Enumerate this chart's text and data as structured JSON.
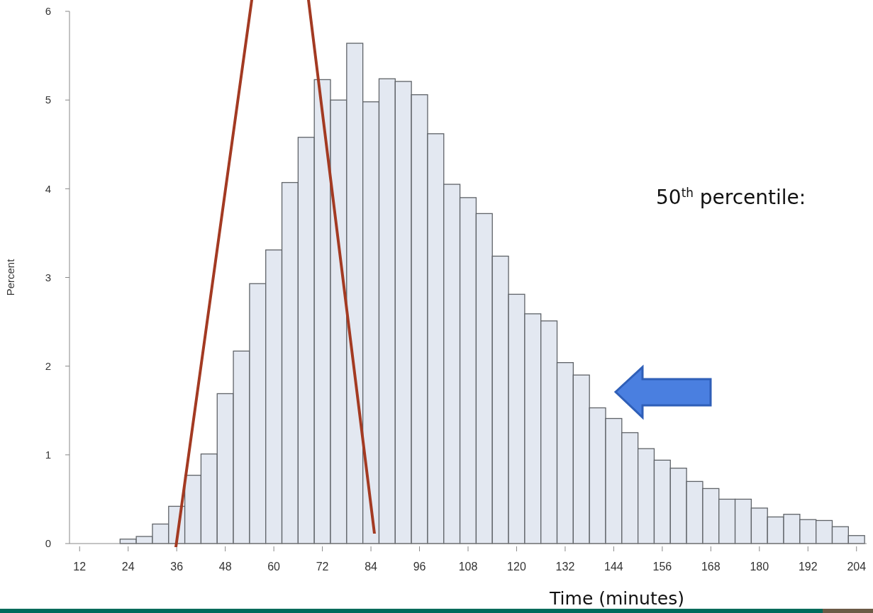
{
  "chart_data": {
    "type": "histogram",
    "xlabel": "Time (minutes)",
    "ylabel": "Percent",
    "bins": [
      22,
      26,
      30,
      34,
      38,
      42,
      46,
      50,
      54,
      58,
      62,
      66,
      70,
      74,
      78,
      82,
      86,
      90,
      94,
      98,
      102,
      106,
      110,
      114,
      118,
      122,
      126,
      130,
      134,
      138,
      142,
      146,
      150,
      154,
      158,
      162,
      166,
      170,
      174,
      178,
      182,
      186,
      190,
      194,
      198,
      202,
      206
    ],
    "values": [
      0.05,
      0.08,
      0.22,
      0.42,
      0.77,
      1.01,
      1.69,
      2.17,
      2.93,
      3.31,
      4.07,
      4.58,
      5.23,
      5.0,
      5.64,
      4.98,
      5.24,
      5.21,
      5.06,
      4.62,
      4.05,
      3.9,
      3.72,
      3.24,
      2.81,
      2.59,
      2.51,
      2.04,
      1.9,
      1.53,
      1.41,
      1.25,
      1.07,
      0.94,
      0.85,
      0.7,
      0.62,
      0.5,
      0.5,
      0.4,
      0.3,
      0.33,
      0.27,
      0.26,
      0.19,
      0.09
    ],
    "color": "#e3e8f1",
    "xlim": [
      9.5,
      206.5
    ],
    "xticks": [
      12,
      24,
      36,
      48,
      60,
      72,
      84,
      96,
      108,
      120,
      132,
      144,
      156,
      168,
      180,
      192,
      204
    ],
    "ylim": [
      0,
      6
    ],
    "yticks": [
      0,
      1,
      2,
      3,
      4,
      5,
      6
    ],
    "grid": false,
    "annotations": [
      "50$^{th}$ percentile:"
    ]
  }
}
